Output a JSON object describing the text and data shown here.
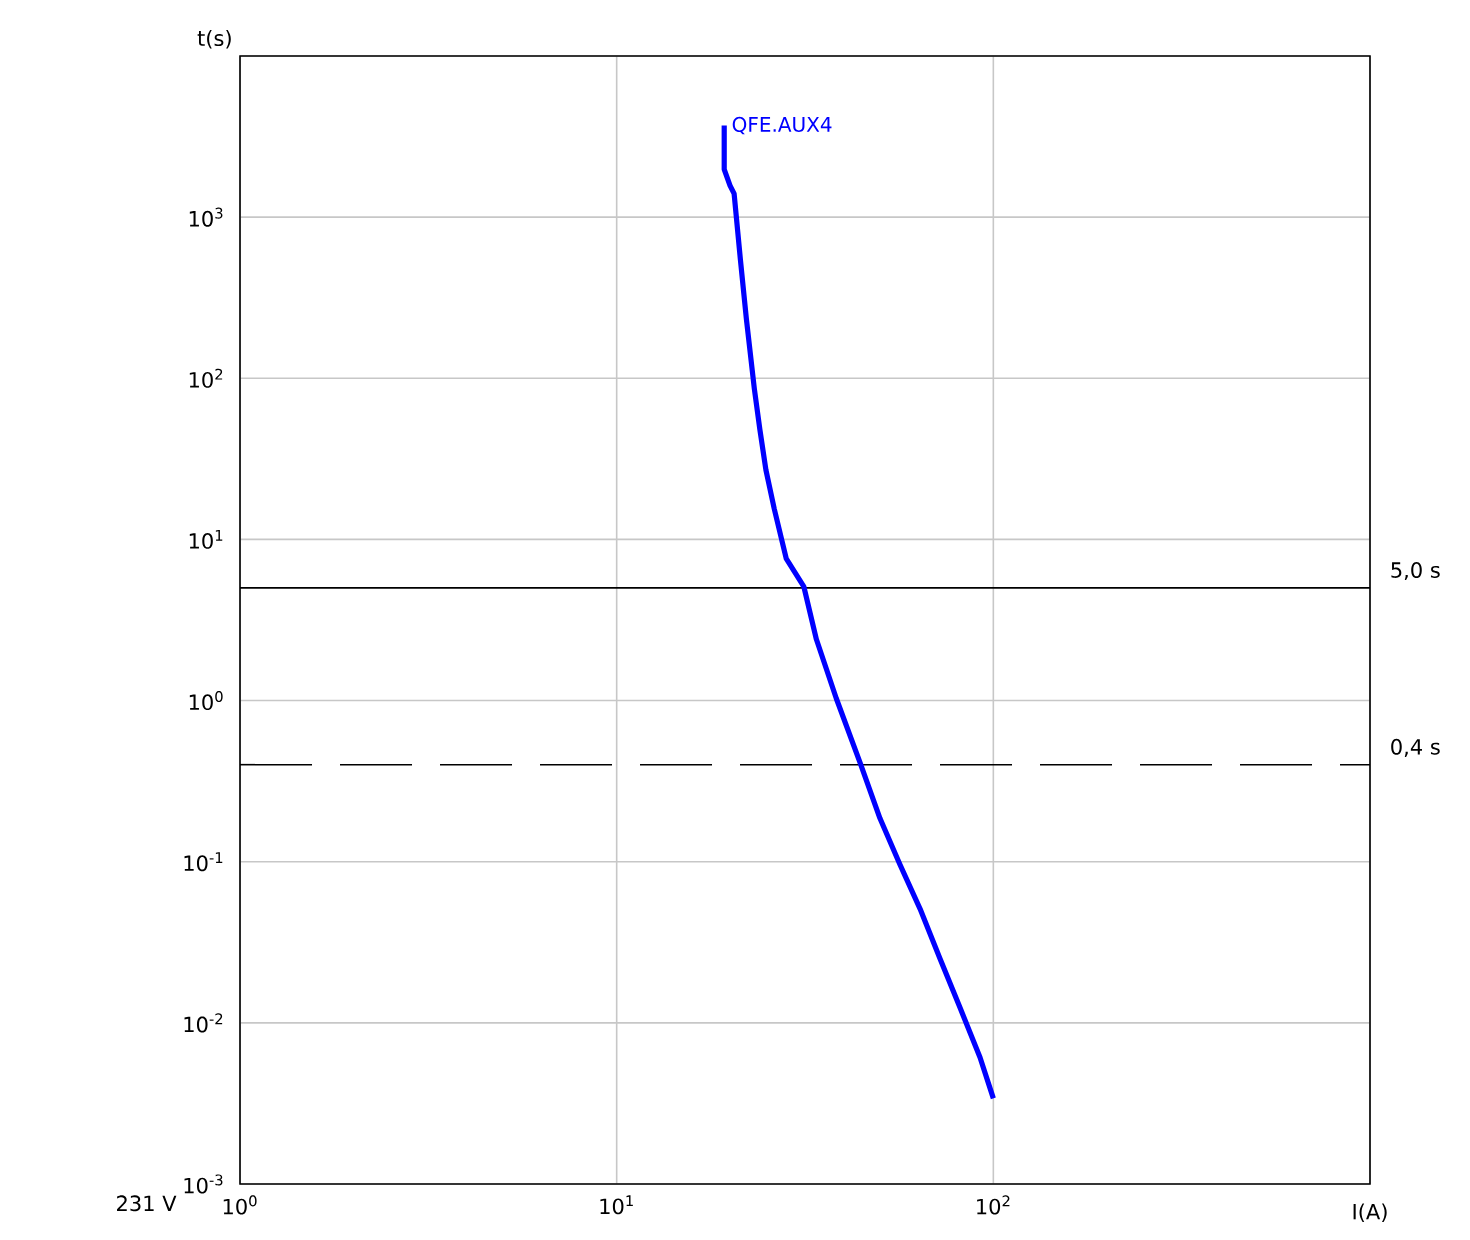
{
  "chart_data": {
    "type": "line",
    "xlabel": "I(A)",
    "ylabel": "t(s)",
    "log": "xy",
    "grid": true,
    "xlim": [
      1,
      1000
    ],
    "ylim": [
      0.001,
      10000
    ],
    "xticks": [
      {
        "value": 1,
        "label": "10$^{0}$"
      },
      {
        "value": 10,
        "label": "10$^{1}$"
      },
      {
        "value": 100,
        "label": "10$^{2}$"
      },
      {
        "value": 1000,
        "label": null
      }
    ],
    "yticks": [
      {
        "value": 0.001,
        "label": "10$^{-3}$"
      },
      {
        "value": 0.01,
        "label": "10$^{-2}$"
      },
      {
        "value": 0.1,
        "label": "10$^{-1}$"
      },
      {
        "value": 1,
        "label": "10$^{0}$"
      },
      {
        "value": 10,
        "label": "10$^{1}$"
      },
      {
        "value": 100,
        "label": "10$^{2}$"
      },
      {
        "value": 1000,
        "label": "10$^{3}$"
      },
      {
        "value": 10000,
        "label": null
      }
    ],
    "series": [
      {
        "name": "QFE.AUX4",
        "color": "#0000ff",
        "x": [
          19.3,
          19.3,
          20.0,
          20.5,
          21.3,
          22.1,
          23.2,
          24.0,
          24.9,
          26.2,
          28.2,
          31.4,
          33.9,
          38.3,
          44.3,
          50.0,
          56.5,
          63.9,
          72.2,
          81.6,
          92.2,
          100
        ],
        "values": [
          3700,
          1980,
          1570,
          1400,
          548,
          233,
          86,
          48,
          27,
          15.5,
          7.6,
          5.1,
          2.4,
          1.03,
          0.41,
          0.186,
          0.096,
          0.051,
          0.025,
          0.0124,
          0.0061,
          0.0034
        ]
      }
    ],
    "ref_lines": [
      {
        "axis": "y",
        "value": 5.0,
        "label": "5,0 s",
        "line_style": "solid",
        "color": "#000000"
      },
      {
        "axis": "y",
        "value": 0.4,
        "label": "0,4 s",
        "line_style": "dashed",
        "color": "#000000"
      }
    ],
    "annotations": [
      "231 V"
    ]
  }
}
